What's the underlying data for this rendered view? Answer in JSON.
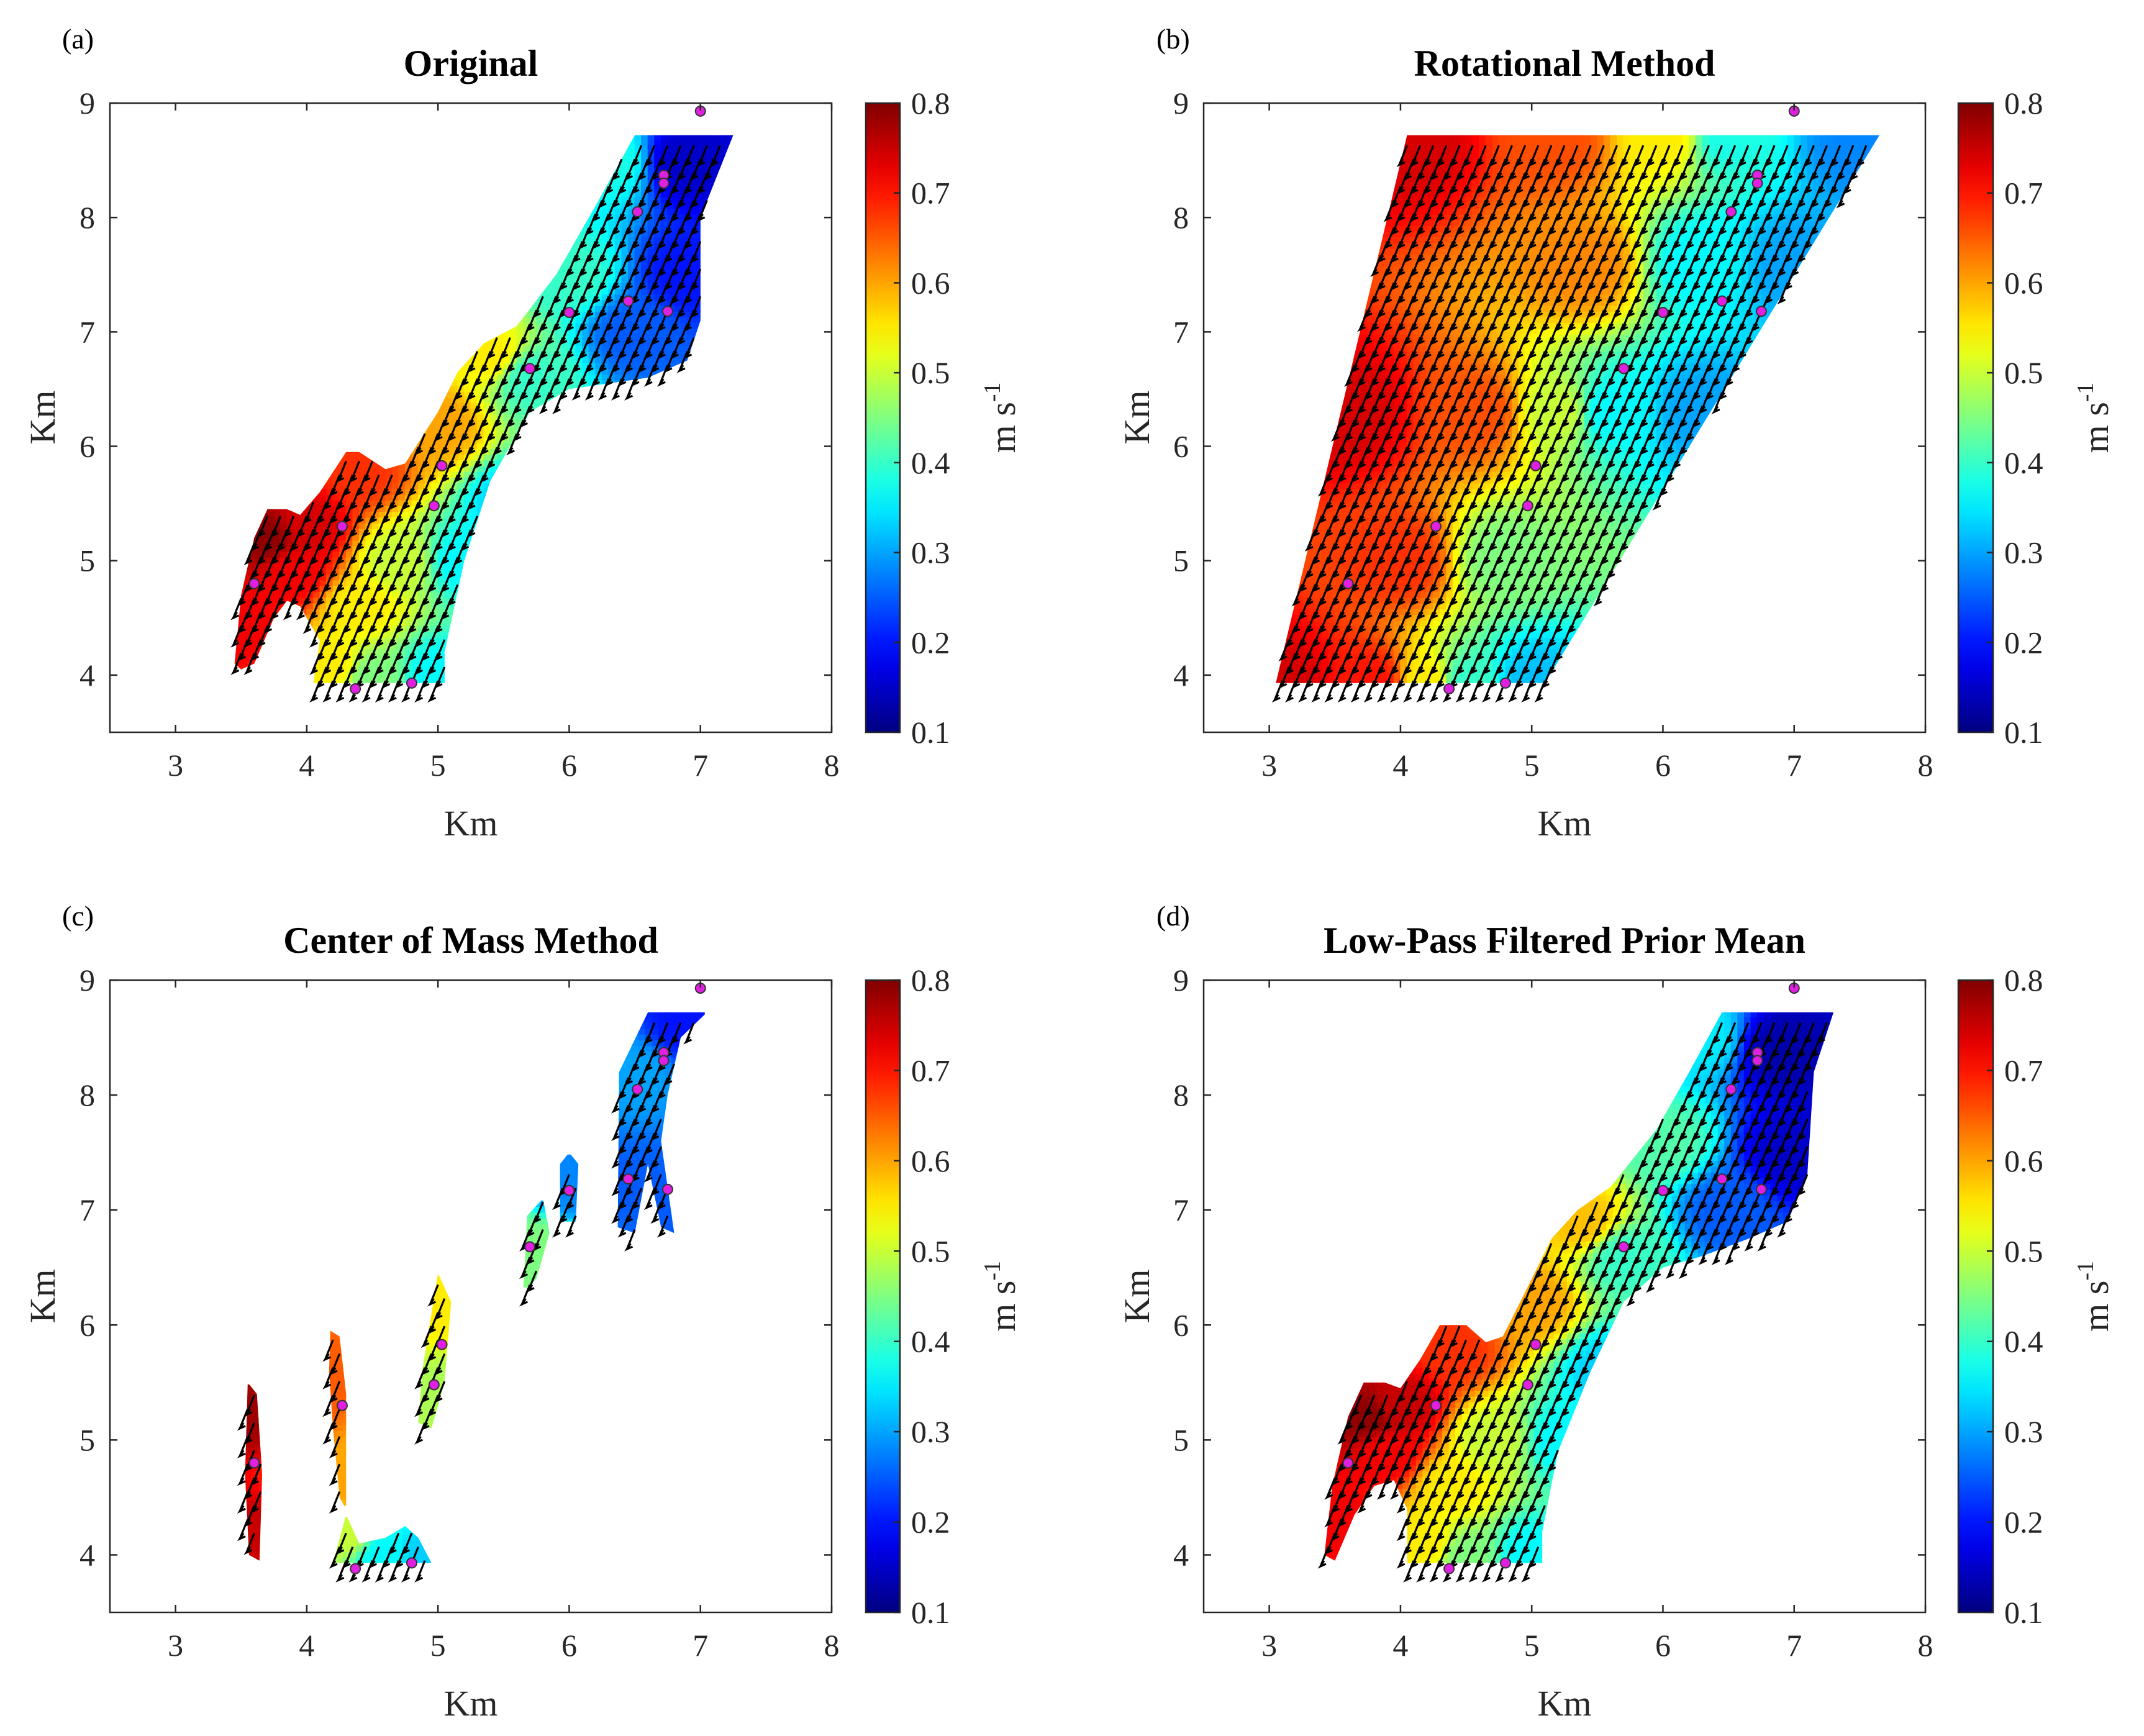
{
  "chart_data": {
    "type": "heatmap",
    "xlabel": "Km",
    "ylabel": "Km",
    "xlim": [
      2.5,
      8
    ],
    "ylim": [
      3.5,
      9
    ],
    "xticks": [
      3,
      4,
      5,
      6,
      7,
      8
    ],
    "yticks": [
      4,
      5,
      6,
      7,
      8,
      9
    ],
    "colormap": "jet",
    "colorbar": {
      "min": 0.1,
      "max": 0.8,
      "ticks": [
        "0.1",
        "0.2",
        "0.3",
        "0.4",
        "0.5",
        "0.6",
        "0.7",
        "0.8"
      ],
      "label": "m s",
      "label_exponent": "-1"
    },
    "station_color": "#e020e0",
    "stations": [
      [
        7.0,
        8.93
      ],
      [
        6.72,
        8.37
      ],
      [
        6.72,
        8.3
      ],
      [
        6.52,
        8.05
      ],
      [
        6.45,
        7.27
      ],
      [
        6.0,
        7.17
      ],
      [
        6.75,
        7.18
      ],
      [
        5.7,
        6.68
      ],
      [
        5.03,
        5.83
      ],
      [
        4.97,
        5.48
      ],
      [
        4.27,
        5.3
      ],
      [
        3.6,
        4.8
      ],
      [
        4.37,
        3.88
      ],
      [
        4.8,
        3.93
      ]
    ],
    "vector_direction_km": [
      -0.06,
      -0.17
    ],
    "panels": [
      {
        "label": "(a)",
        "title": "Original",
        "regions": [
          [
            [
              3.45,
              4.1
            ],
            [
              3.5,
              4.7
            ],
            [
              3.6,
              5.2
            ],
            [
              3.7,
              5.45
            ],
            [
              3.85,
              5.45
            ],
            [
              3.95,
              5.4
            ],
            [
              4.1,
              5.6
            ],
            [
              4.3,
              5.95
            ],
            [
              4.4,
              5.95
            ],
            [
              4.6,
              5.8
            ],
            [
              4.75,
              5.85
            ],
            [
              5.0,
              6.3
            ],
            [
              5.15,
              6.65
            ],
            [
              5.35,
              6.9
            ],
            [
              5.6,
              7.05
            ],
            [
              5.9,
              7.5
            ],
            [
              6.2,
              8.1
            ],
            [
              6.5,
              8.72
            ],
            [
              7.25,
              8.72
            ],
            [
              7.0,
              8.0
            ],
            [
              7.0,
              7.1
            ],
            [
              6.9,
              6.75
            ],
            [
              6.6,
              6.6
            ],
            [
              6.3,
              6.55
            ],
            [
              6.0,
              6.5
            ],
            [
              5.7,
              6.3
            ],
            [
              5.4,
              5.7
            ],
            [
              5.2,
              5.0
            ],
            [
              5.05,
              4.2
            ],
            [
              5.05,
              3.93
            ],
            [
              4.05,
              3.93
            ],
            [
              4.1,
              4.3
            ],
            [
              3.95,
              4.6
            ],
            [
              3.85,
              4.65
            ],
            [
              3.75,
              4.5
            ],
            [
              3.6,
              4.1
            ],
            [
              3.5,
              4.05
            ]
          ]
        ],
        "field_samples": [
          [
            3.7,
            5.2,
            0.79
          ],
          [
            3.5,
            4.4,
            0.72
          ],
          [
            4.0,
            5.3,
            0.74
          ],
          [
            4.4,
            5.8,
            0.68
          ],
          [
            4.2,
            4.1,
            0.55
          ],
          [
            4.5,
            4.0,
            0.45
          ],
          [
            5.0,
            4.0,
            0.36
          ],
          [
            4.7,
            5.0,
            0.5
          ],
          [
            5.0,
            6.2,
            0.6
          ],
          [
            5.4,
            6.8,
            0.55
          ],
          [
            5.7,
            6.6,
            0.4
          ],
          [
            5.2,
            5.0,
            0.36
          ],
          [
            6.0,
            7.5,
            0.4
          ],
          [
            6.3,
            8.5,
            0.38
          ],
          [
            6.5,
            7.0,
            0.25
          ],
          [
            6.9,
            8.5,
            0.15
          ],
          [
            6.9,
            7.5,
            0.2
          ],
          [
            5.6,
            5.5,
            0.33
          ],
          [
            4.4,
            4.6,
            0.55
          ],
          [
            3.9,
            4.9,
            0.72
          ]
        ]
      },
      {
        "label": "(b)",
        "title": "Rotational Method",
        "regions": [
          [
            [
              3.05,
              3.93
            ],
            [
              4.05,
              8.72
            ],
            [
              7.65,
              8.72
            ],
            [
              5.1,
              3.93
            ]
          ]
        ],
        "field_samples": [
          [
            3.1,
            3.95,
            0.74
          ],
          [
            3.8,
            3.95,
            0.7
          ],
          [
            4.2,
            3.95,
            0.55
          ],
          [
            4.5,
            3.95,
            0.4
          ],
          [
            5.0,
            3.95,
            0.32
          ],
          [
            4.1,
            8.7,
            0.74
          ],
          [
            5.2,
            8.7,
            0.66
          ],
          [
            6.0,
            8.7,
            0.55
          ],
          [
            6.5,
            8.7,
            0.38
          ],
          [
            7.5,
            8.7,
            0.28
          ],
          [
            3.6,
            6.3,
            0.74
          ],
          [
            4.6,
            6.3,
            0.66
          ],
          [
            5.2,
            6.3,
            0.5
          ],
          [
            5.6,
            6.3,
            0.36
          ],
          [
            6.3,
            6.3,
            0.3
          ],
          [
            4.0,
            5.0,
            0.68
          ],
          [
            4.8,
            5.0,
            0.45
          ],
          [
            5.4,
            7.6,
            0.62
          ],
          [
            6.3,
            7.6,
            0.36
          ],
          [
            7.0,
            7.6,
            0.3
          ]
        ]
      },
      {
        "label": "(c)",
        "title": "Center of Mass Method",
        "regions": [
          [
            [
              3.56,
              4.0
            ],
            [
              3.53,
              4.7
            ],
            [
              3.55,
              5.5
            ],
            [
              3.62,
              5.4
            ],
            [
              3.66,
              4.7
            ],
            [
              3.64,
              3.95
            ]
          ],
          [
            [
              4.18,
              5.95
            ],
            [
              4.25,
              5.9
            ],
            [
              4.3,
              5.4
            ],
            [
              4.3,
              4.4
            ],
            [
              4.25,
              4.5
            ],
            [
              4.2,
              5.1
            ],
            [
              4.17,
              5.6
            ]
          ],
          [
            [
              4.2,
              3.93
            ],
            [
              4.3,
              4.35
            ],
            [
              4.4,
              4.1
            ],
            [
              4.6,
              4.15
            ],
            [
              4.75,
              4.25
            ],
            [
              4.85,
              4.15
            ],
            [
              4.95,
              3.93
            ]
          ],
          [
            [
              4.85,
              5.15
            ],
            [
              4.88,
              5.6
            ],
            [
              5.0,
              6.45
            ],
            [
              5.1,
              6.2
            ],
            [
              5.05,
              5.5
            ],
            [
              4.95,
              5.1
            ]
          ],
          [
            [
              5.65,
              6.3
            ],
            [
              5.68,
              6.95
            ],
            [
              5.8,
              7.1
            ],
            [
              5.85,
              6.8
            ],
            [
              5.75,
              6.4
            ]
          ],
          [
            [
              5.93,
              6.9
            ],
            [
              5.93,
              7.4
            ],
            [
              6.0,
              7.5
            ],
            [
              6.07,
              7.4
            ],
            [
              6.05,
              6.9
            ]
          ],
          [
            [
              6.37,
              6.85
            ],
            [
              6.38,
              8.2
            ],
            [
              6.6,
              8.72
            ],
            [
              7.05,
              8.72
            ],
            [
              6.85,
              8.5
            ],
            [
              6.75,
              8.0
            ],
            [
              6.7,
              7.6
            ],
            [
              6.8,
              6.8
            ],
            [
              6.7,
              6.85
            ],
            [
              6.6,
              7.4
            ],
            [
              6.5,
              6.8
            ]
          ]
        ],
        "field_samples": [
          [
            3.6,
            5.3,
            0.78
          ],
          [
            3.6,
            4.2,
            0.75
          ],
          [
            4.24,
            5.6,
            0.65
          ],
          [
            4.26,
            4.6,
            0.6
          ],
          [
            4.3,
            4.2,
            0.5
          ],
          [
            4.6,
            4.0,
            0.36
          ],
          [
            4.9,
            4.0,
            0.33
          ],
          [
            4.95,
            5.4,
            0.48
          ],
          [
            5.0,
            6.2,
            0.55
          ],
          [
            5.75,
            6.7,
            0.45
          ],
          [
            6.0,
            7.2,
            0.28
          ],
          [
            6.45,
            7.2,
            0.25
          ],
          [
            6.5,
            8.2,
            0.3
          ],
          [
            6.75,
            7.0,
            0.25
          ],
          [
            6.9,
            8.6,
            0.2
          ]
        ]
      },
      {
        "label": "(d)",
        "title": "Low-Pass Filtered Prior Mean",
        "regions": [
          [
            [
              3.42,
              4.0
            ],
            [
              3.48,
              4.6
            ],
            [
              3.6,
              5.2
            ],
            [
              3.72,
              5.5
            ],
            [
              3.88,
              5.5
            ],
            [
              4.0,
              5.45
            ],
            [
              4.15,
              5.7
            ],
            [
              4.3,
              6.0
            ],
            [
              4.5,
              6.0
            ],
            [
              4.65,
              5.85
            ],
            [
              4.78,
              5.9
            ],
            [
              5.0,
              6.4
            ],
            [
              5.15,
              6.75
            ],
            [
              5.35,
              7.0
            ],
            [
              5.6,
              7.2
            ],
            [
              5.95,
              7.7
            ],
            [
              6.2,
              8.2
            ],
            [
              6.45,
              8.72
            ],
            [
              7.3,
              8.72
            ],
            [
              7.15,
              8.2
            ],
            [
              7.1,
              7.3
            ],
            [
              6.95,
              6.9
            ],
            [
              6.65,
              6.75
            ],
            [
              6.3,
              6.6
            ],
            [
              6.0,
              6.5
            ],
            [
              5.7,
              6.2
            ],
            [
              5.45,
              5.6
            ],
            [
              5.2,
              4.9
            ],
            [
              5.08,
              4.2
            ],
            [
              5.08,
              3.93
            ],
            [
              4.05,
              3.93
            ],
            [
              4.05,
              4.4
            ],
            [
              3.95,
              4.65
            ],
            [
              3.8,
              4.6
            ],
            [
              3.65,
              4.35
            ],
            [
              3.5,
              3.95
            ]
          ]
        ],
        "field_samples": [
          [
            3.75,
            5.2,
            0.79
          ],
          [
            3.5,
            4.3,
            0.72
          ],
          [
            4.0,
            5.3,
            0.75
          ],
          [
            4.4,
            5.8,
            0.68
          ],
          [
            4.2,
            4.1,
            0.55
          ],
          [
            4.5,
            4.0,
            0.45
          ],
          [
            5.0,
            4.0,
            0.36
          ],
          [
            4.7,
            5.0,
            0.5
          ],
          [
            5.0,
            6.2,
            0.6
          ],
          [
            5.4,
            6.9,
            0.58
          ],
          [
            5.7,
            6.6,
            0.4
          ],
          [
            5.25,
            5.0,
            0.36
          ],
          [
            6.0,
            7.6,
            0.42
          ],
          [
            6.3,
            8.5,
            0.35
          ],
          [
            6.5,
            7.0,
            0.25
          ],
          [
            6.9,
            8.4,
            0.13
          ],
          [
            7.0,
            7.5,
            0.15
          ],
          [
            5.6,
            5.6,
            0.33
          ],
          [
            4.4,
            4.6,
            0.55
          ],
          [
            3.9,
            4.9,
            0.72
          ]
        ]
      }
    ]
  }
}
